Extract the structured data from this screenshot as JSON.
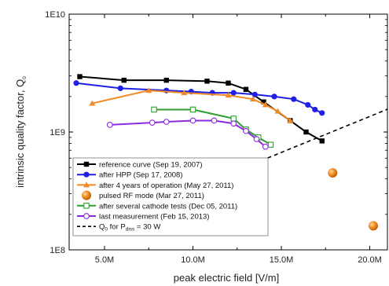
{
  "chart_data": {
    "type": "line",
    "xlabel": "peak electric field [V/m]",
    "ylabel": "intrinsic quality factor, Q",
    "ylabel_subscript": "0",
    "x_scale": "linear",
    "y_scale": "log",
    "xlim": [
      3000000,
      21000000
    ],
    "ylim": [
      100000000,
      10000000000
    ],
    "x_ticks": [
      5000000,
      10000000,
      15000000,
      20000000
    ],
    "x_tick_labels": [
      "5.0M",
      "10.0M",
      "15.0M",
      "20.0M"
    ],
    "y_ticks": [
      100000000,
      1000000000,
      10000000000
    ],
    "y_tick_labels": [
      "1E8",
      "1E9",
      "1E10"
    ],
    "legend_position": "bottom-left",
    "series": [
      {
        "name": "reference curve (Sep 19, 2007)",
        "color": "#000000",
        "marker": "square-filled",
        "x": [
          3600000,
          6100000,
          8500000,
          10800000,
          12000000,
          13000000,
          14000000,
          15500000,
          16400000,
          17300000
        ],
        "y": [
          2950000000,
          2750000000,
          2750000000,
          2700000000,
          2600000000,
          2300000000,
          1800000000,
          1250000000,
          1000000000,
          840000000
        ]
      },
      {
        "name": "after HPP (Sep 17, 2008)",
        "color": "#1f1fe6",
        "marker": "circle-filled",
        "x": [
          3400000,
          5900000,
          8500000,
          9900000,
          11100000,
          12300000,
          13500000,
          14600000,
          15700000,
          16500000,
          16900000,
          17300000
        ],
        "y": [
          2600000000,
          2350000000,
          2250000000,
          2200000000,
          2150000000,
          2150000000,
          2080000000,
          2000000000,
          1900000000,
          1700000000,
          1550000000,
          1450000000
        ]
      },
      {
        "name": "after 4 years of operation (May 27, 2011)",
        "color": "#f08a24",
        "marker": "triangle-filled",
        "x": [
          4300000,
          7500000,
          9500000,
          12000000,
          13400000,
          14100000,
          14800000,
          15500000
        ],
        "y": [
          1750000000,
          2250000000,
          2150000000,
          2050000000,
          1900000000,
          1700000000,
          1500000000,
          1250000000
        ]
      },
      {
        "name": "pulsed RF mode (Mar 27, 2011)",
        "color": "#f08a24",
        "marker": "sphere",
        "line": "none",
        "x": [
          17900000,
          20200000
        ],
        "y": [
          450000000,
          160000000
        ]
      },
      {
        "name": "after several cathode tests (Dec 05, 2011)",
        "color": "#2ca02c",
        "marker": "square-open",
        "x": [
          7800000,
          10000000,
          12300000,
          13000000,
          13700000,
          14400000
        ],
        "y": [
          1550000000,
          1550000000,
          1300000000,
          1050000000,
          900000000,
          780000000
        ]
      },
      {
        "name": "last measurement (Feb 15, 2013)",
        "color": "#8a2be2",
        "marker": "circle-open",
        "x": [
          5300000,
          7700000,
          8500000,
          10000000,
          11200000,
          12300000,
          13000000,
          13600000,
          14100000
        ],
        "y": [
          1150000000,
          1200000000,
          1220000000,
          1250000000,
          1250000000,
          1180000000,
          1020000000,
          870000000,
          750000000
        ]
      },
      {
        "name": "Q0 for Pdiss = 30 W",
        "color": "#000000",
        "marker": "none",
        "line": "dashed",
        "x": [
          12000000,
          21000000
        ],
        "y": [
          440000000,
          1560000000
        ]
      }
    ]
  },
  "legend": [
    {
      "label": "reference curve (Sep 19, 2007)",
      "color": "#000000",
      "marker": "square-filled",
      "line": "solid"
    },
    {
      "label": "after HPP (Sep 17, 2008)",
      "color": "#1f1fe6",
      "marker": "circle-filled",
      "line": "solid"
    },
    {
      "label": "after 4 years of operation (May 27, 2011)",
      "color": "#f08a24",
      "marker": "triangle-filled",
      "line": "solid"
    },
    {
      "label": "pulsed RF mode (Mar 27, 2011)",
      "color": "#f08a24",
      "marker": "sphere",
      "line": "none"
    },
    {
      "label": "after several cathode tests (Dec 05, 2011)",
      "color": "#2ca02c",
      "marker": "square-open",
      "line": "solid"
    },
    {
      "label": "last measurement (Feb 15, 2013)",
      "color": "#8a2be2",
      "marker": "circle-open",
      "line": "solid"
    },
    {
      "label_parts": {
        "q": "Q",
        "q_sub": "0",
        "mid": " for P",
        "p_sub": "diss",
        "tail": " = 30 W"
      },
      "color": "#000000",
      "marker": "none",
      "line": "dashed"
    }
  ]
}
